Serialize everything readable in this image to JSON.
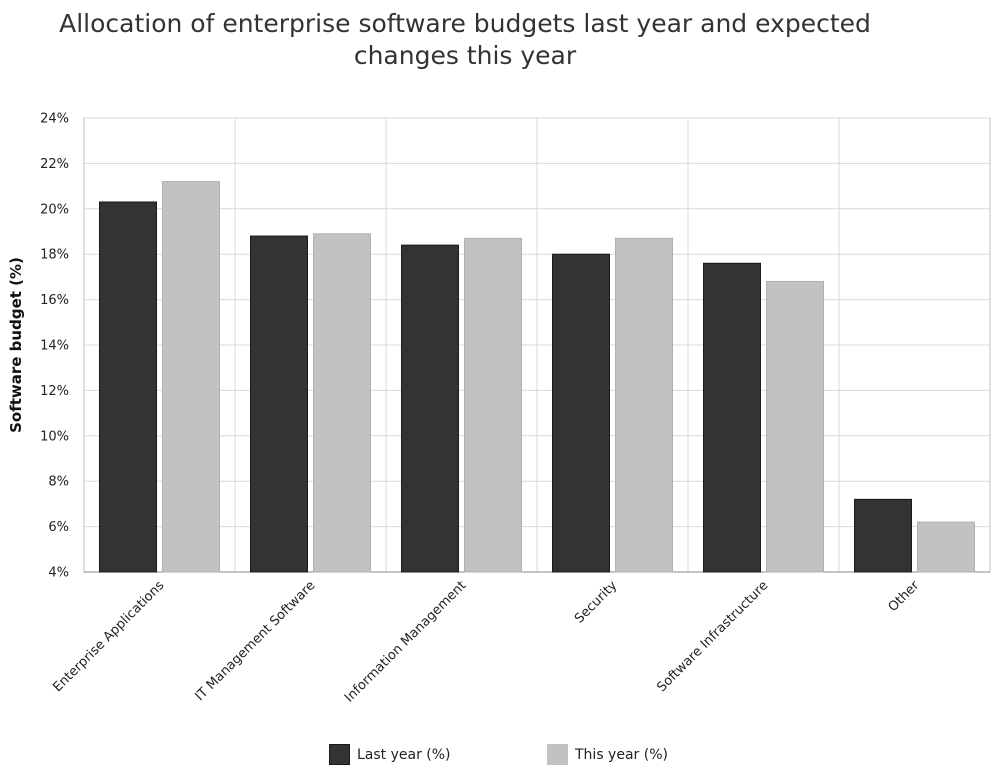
{
  "chart_data": {
    "type": "bar",
    "title_lines": [
      "Allocation of enterprise software budgets last year and expected",
      "changes this year"
    ],
    "ylabel": "Software budget (%)",
    "xlabel": "",
    "ylim": [
      4,
      24
    ],
    "y_ticks": [
      4,
      6,
      8,
      10,
      12,
      14,
      16,
      18,
      20,
      22,
      24
    ],
    "y_tick_suffix": "%",
    "grid": true,
    "legend_position": "bottom",
    "categories": [
      "Enterprise Applications",
      "IT Management Software",
      "Information Management",
      "Security",
      "Software Infrastructure",
      "Other"
    ],
    "series": [
      {
        "name": "Last year (%)",
        "values": [
          20.3,
          18.8,
          18.4,
          18.0,
          17.6,
          7.2
        ],
        "color": "#333333"
      },
      {
        "name": "This year (%)",
        "values": [
          21.2,
          18.9,
          18.7,
          18.7,
          16.8,
          6.2
        ],
        "color": "#c2c2c2"
      }
    ]
  }
}
